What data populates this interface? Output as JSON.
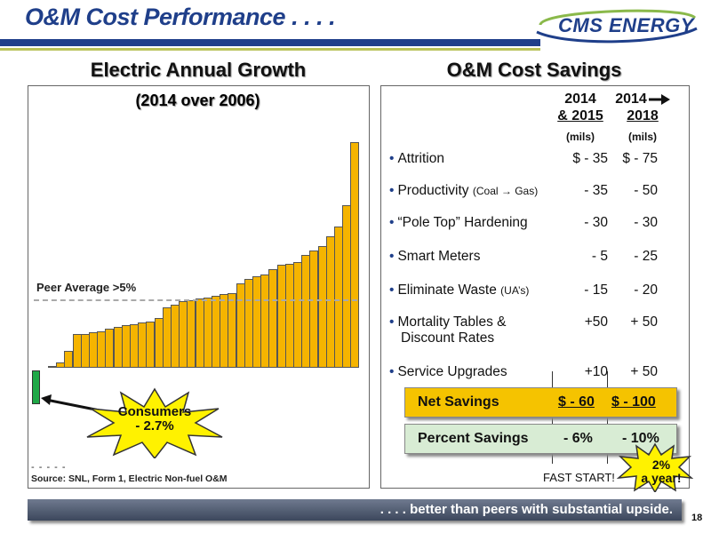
{
  "slide": {
    "title": "O&M Cost Performance . . . .",
    "logo_text": "CMS ENERGY",
    "page_number": "18",
    "footer": ". . . . better than peers with substantial upside."
  },
  "left_panel": {
    "heading": "Electric Annual Growth",
    "subheading": "(2014 over 2006)",
    "peer_label": "Peer Average >5%",
    "callout_line1": "Consumers",
    "callout_line2": "- 2.7%",
    "dashes": "- - - - -",
    "source": "Source: SNL, Form 1, Electric Non-fuel  O&M"
  },
  "chart_data": {
    "type": "bar",
    "title": "Electric Annual Growth",
    "subtitle": "(2014 over 2006)",
    "annotations": [
      "Peer Average >5%",
      "Consumers - 2.7%"
    ],
    "consumers_value": -2.7,
    "peer_average": 5,
    "values": [
      -2.7,
      0.1,
      0.4,
      1.2,
      2.4,
      2.4,
      2.5,
      2.6,
      2.8,
      2.9,
      3.0,
      3.1,
      3.2,
      3.3,
      3.5,
      4.3,
      4.5,
      4.7,
      4.8,
      4.9,
      5.0,
      5.1,
      5.2,
      5.3,
      6.0,
      6.3,
      6.5,
      6.6,
      7.0,
      7.3,
      7.4,
      7.5,
      8.0,
      8.3,
      8.6,
      9.3,
      10.0,
      11.5,
      16.0
    ],
    "highlight_index": 0,
    "colors": {
      "peer": "#f5b400",
      "consumers": "#1fa847"
    }
  },
  "right_panel": {
    "heading": "O&M Cost Savings",
    "col1_line1": "2014",
    "col1_line2": "& 2015",
    "col1_units": "(mils)",
    "col2_line1": "2014",
    "col2_line2": "2018",
    "col2_units": "(mils)",
    "rows": [
      {
        "label": "Attrition",
        "note": "",
        "v1": "$ - 35",
        "v2": "$ -   75"
      },
      {
        "label": "Productivity",
        "note": "(Coal → Gas)",
        "v1": "- 35",
        "v2": "-  50"
      },
      {
        "label": "“Pole Top” Hardening",
        "note": "",
        "v1": "- 30",
        "v2": "-  30"
      },
      {
        "label": "Smart Meters",
        "note": "",
        "v1": "-   5",
        "v2": "-  25"
      },
      {
        "label": "Eliminate Waste",
        "note": "(UA’s)",
        "v1": "- 15",
        "v2": "-  20"
      },
      {
        "label": "Mortality Tables &",
        "label2": "Discount Rates",
        "note": "",
        "v1": "+50",
        "v2": "+ 50"
      },
      {
        "label": "Service Upgrades",
        "note": "",
        "v1": "+10",
        "v2": "+ 50"
      }
    ],
    "net_label": "Net Savings",
    "net_v1": "$ - 60",
    "net_v2": "$ - 100",
    "pct_label": "Percent Savings",
    "pct_v1": "-   6%",
    "pct_v2": "-  10%",
    "fast_start": "FAST START!",
    "burst_line1": "2%",
    "burst_line2": "a year!",
    "colors": {
      "net_box": "#f5c300",
      "pct_box": "#d8ecd4",
      "accent": "#1f3f8a"
    }
  }
}
